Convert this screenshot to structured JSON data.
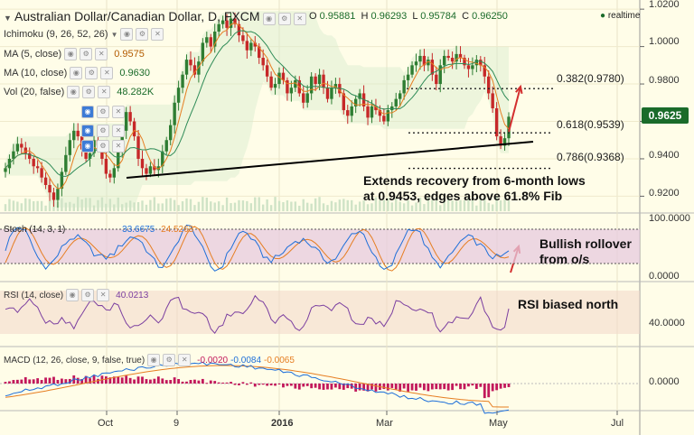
{
  "header": {
    "title": "Australian Dollar/Canadian Dollar, D, FXCM",
    "ohlc": {
      "o_label": "O",
      "o": "0.95881",
      "h_label": "H",
      "h": "0.96293",
      "l_label": "L",
      "l": "0.95784",
      "c_label": "C",
      "c": "0.96250"
    },
    "realtime": "realtime"
  },
  "indicators": [
    {
      "label": "Ichimoku (9, 26, 52, 26)",
      "value": ""
    },
    {
      "label": "MA (5, close)",
      "value": "0.9575"
    },
    {
      "label": "MA (10, close)",
      "value": "0.9630"
    },
    {
      "label": "Vol (20, false)",
      "value": "48.282K"
    },
    {
      "label": "",
      "value": ""
    },
    {
      "label": "",
      "value": ""
    },
    {
      "label": "",
      "value": ""
    }
  ],
  "price_axis": {
    "ticks": [
      "1.0200",
      "1.0000",
      "0.9800",
      "0.9600",
      "0.9400",
      "0.9200"
    ],
    "current": "0.9625"
  },
  "fib": [
    {
      "label": "0.382(0.9780)",
      "value": 0.978
    },
    {
      "label": "0.618(0.9539)",
      "value": 0.9539
    },
    {
      "label": "0.786(0.9368)",
      "value": 0.9368
    }
  ],
  "annotations": {
    "main": [
      "Extends recovery from 6-month lows",
      "at 0.9453, edges above 61.8% Fib"
    ],
    "stoch": [
      "Bullish rollover",
      "from o/s"
    ],
    "rsi": "RSI biased north"
  },
  "stoch": {
    "label": "Stoch (14, 3, 1)",
    "k": "33.6675",
    "d": "24.5263",
    "axis": [
      "100.0000",
      "0.0000"
    ]
  },
  "rsi": {
    "label": "RSI (14, close)",
    "value": "40.0213",
    "axis": [
      "40.0000"
    ]
  },
  "macd": {
    "label": "MACD (12, 26, close, 9, false, true)",
    "v1": "-0.0020",
    "v2": "-0.0084",
    "v3": "-0.0065",
    "axis": [
      "0.0000"
    ]
  },
  "x_axis": [
    "Oct",
    "9",
    "2016",
    "Mar",
    "May",
    "Jul"
  ],
  "colors": {
    "up": "#2e7d32",
    "down": "#c62828",
    "ma5": "#e67e22",
    "ma10": "#2e8b57",
    "stoch_k": "#1e6fd9",
    "stoch_d": "#e67e22",
    "rsi": "#7b3fa0",
    "macd": "#1e6fd9",
    "signal": "#e67e22",
    "hist": "#c2185b",
    "accent": "#1a6b2a"
  },
  "chart_data": {
    "type": "line",
    "title": "Australian Dollar/Canadian Dollar, D, FXCM",
    "ylim": [
      0.912,
      1.022
    ],
    "x_ticks": [
      "Oct",
      "9",
      "2016",
      "Mar",
      "May",
      "Jul"
    ],
    "series": [
      {
        "name": "Close",
        "values": [
          0.935,
          0.94,
          0.944,
          0.948,
          0.946,
          0.943,
          0.94,
          0.936,
          0.935,
          0.93,
          0.926,
          0.922,
          0.918,
          0.924,
          0.933,
          0.942,
          0.95,
          0.955,
          0.952,
          0.945,
          0.94,
          0.943,
          0.95,
          0.947,
          0.94,
          0.932,
          0.93,
          0.935,
          0.944,
          0.955,
          0.965,
          0.96,
          0.952,
          0.94,
          0.935,
          0.932,
          0.936,
          0.934,
          0.936,
          0.944,
          0.95,
          0.958,
          0.97,
          0.978,
          0.985,
          0.993,
          0.99,
          0.985,
          0.992,
          1.002,
          1.005,
          1.0,
          1.008,
          1.012,
          1.014,
          1.01,
          1.015,
          1.012,
          1.006,
          1.003,
          0.998,
          1.002,
          1.0,
          0.994,
          0.99,
          0.984,
          0.978,
          0.98,
          0.986,
          0.982,
          0.975,
          0.978,
          0.982,
          0.975,
          0.97,
          0.975,
          0.984,
          0.98,
          0.985,
          0.978,
          0.972,
          0.978,
          0.98,
          0.975,
          0.966,
          0.963,
          0.968,
          0.972,
          0.975,
          0.968,
          0.962,
          0.968,
          0.966,
          0.963,
          0.96,
          0.966,
          0.968,
          0.972,
          0.975,
          0.982,
          0.985,
          0.99,
          0.992,
          0.995,
          0.99,
          0.993,
          0.985,
          0.98,
          0.99,
          0.995,
          0.994,
          0.992,
          0.996,
          0.994,
          0.99,
          0.988,
          0.99,
          0.993,
          0.99,
          0.984,
          0.975,
          0.967,
          0.952,
          0.947,
          0.951,
          0.9625
        ]
      }
    ],
    "low_point": 0.9453
  }
}
